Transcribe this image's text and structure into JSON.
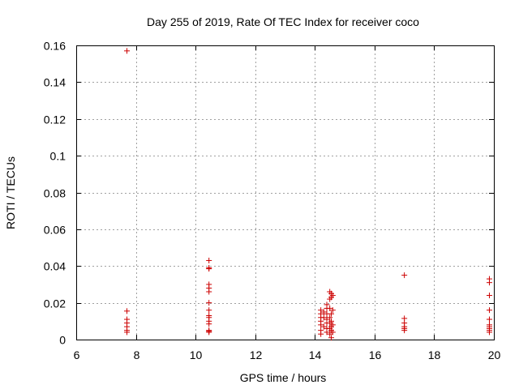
{
  "chart_data": {
    "type": "scatter",
    "title": "Day 255 of 2019, Rate Of TEC Index for receiver coco",
    "xlabel": "GPS time / hours",
    "ylabel": "ROTI / TECUs",
    "xlim": [
      6,
      20
    ],
    "ylim": [
      0,
      0.16
    ],
    "xticks": [
      6,
      8,
      10,
      12,
      14,
      16,
      18,
      20
    ],
    "xtick_labels": [
      "6",
      "8",
      "10",
      "12",
      "14",
      "16",
      "18",
      "20"
    ],
    "yticks": [
      0,
      0.02,
      0.04,
      0.06,
      0.08,
      0.1,
      0.12,
      0.14,
      0.16
    ],
    "ytick_labels": [
      "0",
      "0.02",
      "0.04",
      "0.06",
      "0.08",
      "0.1",
      "0.12",
      "0.14",
      "0.16"
    ],
    "grid": true,
    "marker": "+",
    "color": "#cc0000",
    "series": [
      {
        "points": [
          [
            7.7,
            0.157
          ],
          [
            7.7,
            0.0155
          ],
          [
            7.7,
            0.011
          ],
          [
            7.7,
            0.009
          ],
          [
            7.7,
            0.007
          ],
          [
            7.7,
            0.005
          ],
          [
            7.7,
            0.004
          ],
          [
            10.45,
            0.043
          ],
          [
            10.45,
            0.039
          ],
          [
            10.45,
            0.0385
          ],
          [
            10.45,
            0.03
          ],
          [
            10.45,
            0.028
          ],
          [
            10.45,
            0.026
          ],
          [
            10.45,
            0.02
          ],
          [
            10.45,
            0.016
          ],
          [
            10.45,
            0.013
          ],
          [
            10.45,
            0.012
          ],
          [
            10.45,
            0.01
          ],
          [
            10.45,
            0.0085
          ],
          [
            10.45,
            0.005
          ],
          [
            10.45,
            0.0045
          ],
          [
            10.45,
            0.004
          ],
          [
            14.2,
            0.016
          ],
          [
            14.2,
            0.014
          ],
          [
            14.2,
            0.012
          ],
          [
            14.2,
            0.01
          ],
          [
            14.2,
            0.008
          ],
          [
            14.2,
            0.005
          ],
          [
            14.2,
            0.003
          ],
          [
            14.3,
            0.015
          ],
          [
            14.3,
            0.012
          ],
          [
            14.3,
            0.007
          ],
          [
            14.4,
            0.019
          ],
          [
            14.4,
            0.017
          ],
          [
            14.4,
            0.014
          ],
          [
            14.4,
            0.011
          ],
          [
            14.4,
            0.009
          ],
          [
            14.4,
            0.006
          ],
          [
            14.4,
            0.004
          ],
          [
            14.5,
            0.026
          ],
          [
            14.5,
            0.022
          ],
          [
            14.5,
            0.017
          ],
          [
            14.5,
            0.012
          ],
          [
            14.5,
            0.009
          ],
          [
            14.5,
            0.006
          ],
          [
            14.5,
            0.003
          ],
          [
            14.55,
            0.025
          ],
          [
            14.55,
            0.023
          ],
          [
            14.55,
            0.014
          ],
          [
            14.55,
            0.01
          ],
          [
            14.55,
            0.007
          ],
          [
            14.55,
            0.005
          ],
          [
            14.55,
            0.001
          ],
          [
            14.6,
            0.024
          ],
          [
            14.6,
            0.016
          ],
          [
            14.6,
            0.008
          ],
          [
            14.6,
            0.004
          ],
          [
            17.0,
            0.035
          ],
          [
            17.0,
            0.0115
          ],
          [
            17.0,
            0.009
          ],
          [
            17.0,
            0.007
          ],
          [
            17.0,
            0.006
          ],
          [
            17.0,
            0.005
          ],
          [
            19.85,
            0.033
          ],
          [
            19.85,
            0.031
          ],
          [
            19.85,
            0.024
          ],
          [
            19.85,
            0.016
          ],
          [
            19.85,
            0.011
          ],
          [
            19.85,
            0.008
          ],
          [
            19.85,
            0.007
          ],
          [
            19.85,
            0.006
          ],
          [
            19.85,
            0.005
          ],
          [
            19.85,
            0.004
          ]
        ]
      }
    ]
  }
}
